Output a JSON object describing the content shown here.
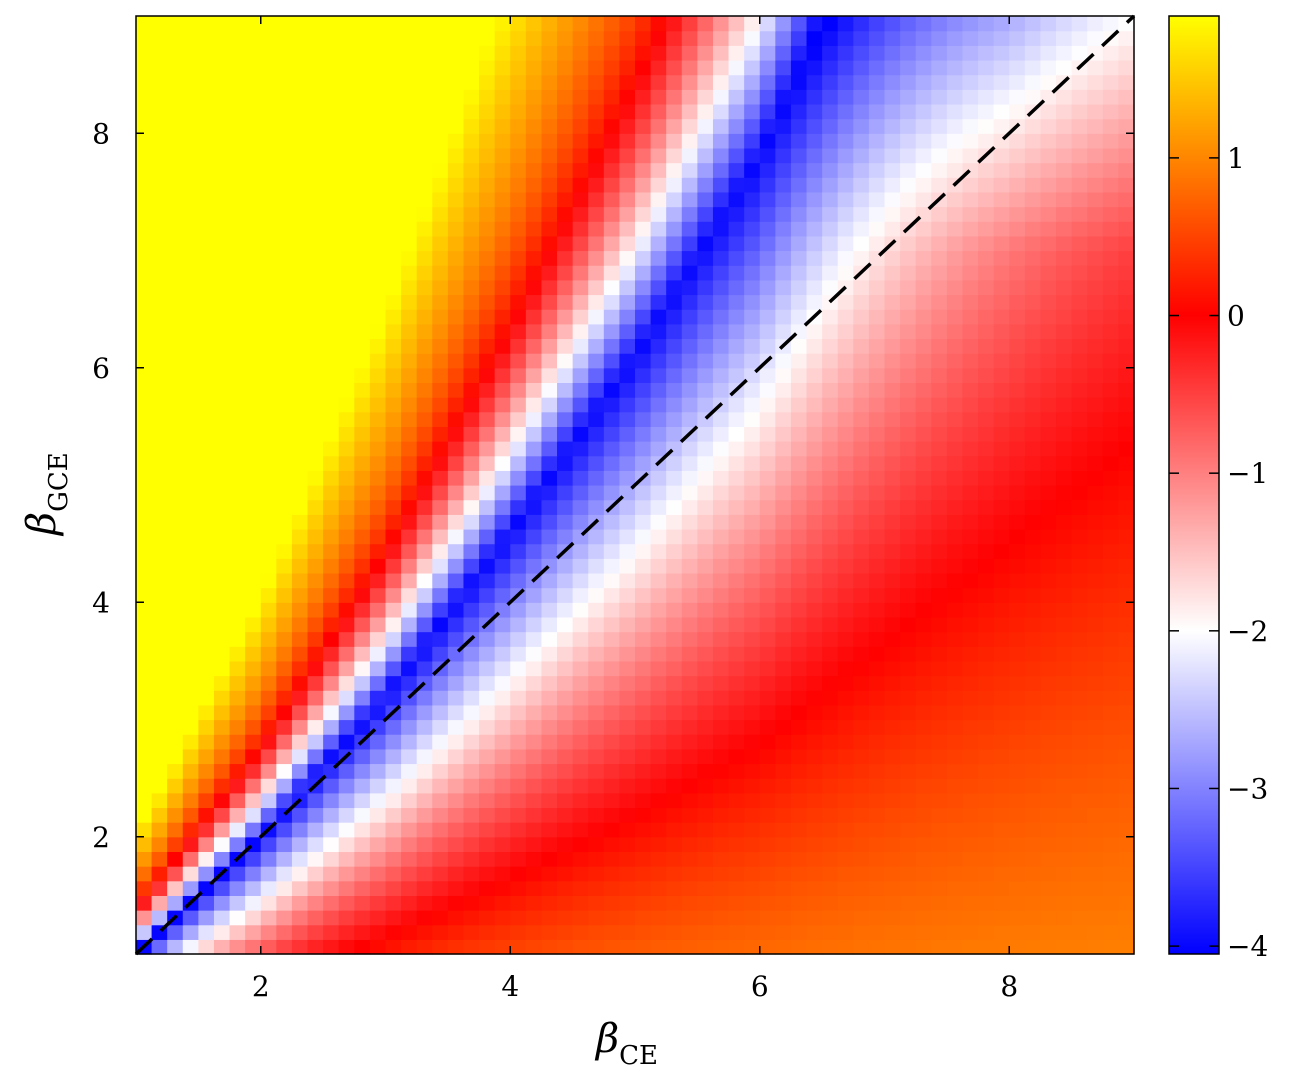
{
  "chart_data": {
    "type": "heatmap",
    "title": "",
    "x_axis": {
      "label_symbol": "β",
      "label_subscript": "CE",
      "range": [
        1,
        9
      ],
      "ticks": [
        2,
        4,
        6,
        8
      ],
      "tick_labels": [
        "2",
        "4",
        "6",
        "8"
      ]
    },
    "y_axis": {
      "label_symbol": "β",
      "label_subscript": "GCE",
      "range": [
        1,
        9
      ],
      "ticks": [
        2,
        4,
        6,
        8
      ],
      "tick_labels": [
        "2",
        "4",
        "6",
        "8"
      ]
    },
    "colorbar": {
      "range": [
        -4.05,
        1.9
      ],
      "ticks": [
        1,
        0,
        -1,
        -2,
        -3,
        -4
      ],
      "tick_labels": [
        "1",
        "0",
        "−1",
        "−2",
        "−3",
        "−4"
      ],
      "colormap": [
        {
          "value": -4.05,
          "color": "#0000ff"
        },
        {
          "value": -2.0,
          "color": "#ffffff"
        },
        {
          "value": 0.0,
          "color": "#ff0000"
        },
        {
          "value": 1.9,
          "color": "#ffff00"
        }
      ]
    },
    "grid": {
      "nx": 64,
      "ny": 64,
      "x_range": [
        1,
        9
      ],
      "y_range": [
        1,
        9
      ]
    },
    "features": {
      "min_ridge_points": [
        [
          1,
          1
        ],
        [
          2,
          2
        ],
        [
          3,
          3.2
        ],
        [
          4,
          4.6
        ],
        [
          5,
          6.1
        ],
        [
          6,
          7.8
        ],
        [
          6.5,
          9
        ]
      ],
      "min_ridge_value": -4.0,
      "zero_contour_points_upper": [
        [
          1.2,
          1.5
        ],
        [
          2.5,
          4
        ],
        [
          3.5,
          6
        ],
        [
          4.3,
          8.5
        ]
      ],
      "high_corner_value": 1.9
    },
    "reference_line": {
      "style": "dashed",
      "color": "#000000",
      "points": [
        [
          1,
          1
        ],
        [
          9,
          9
        ]
      ]
    },
    "grid_lines": false,
    "legend": "none"
  }
}
